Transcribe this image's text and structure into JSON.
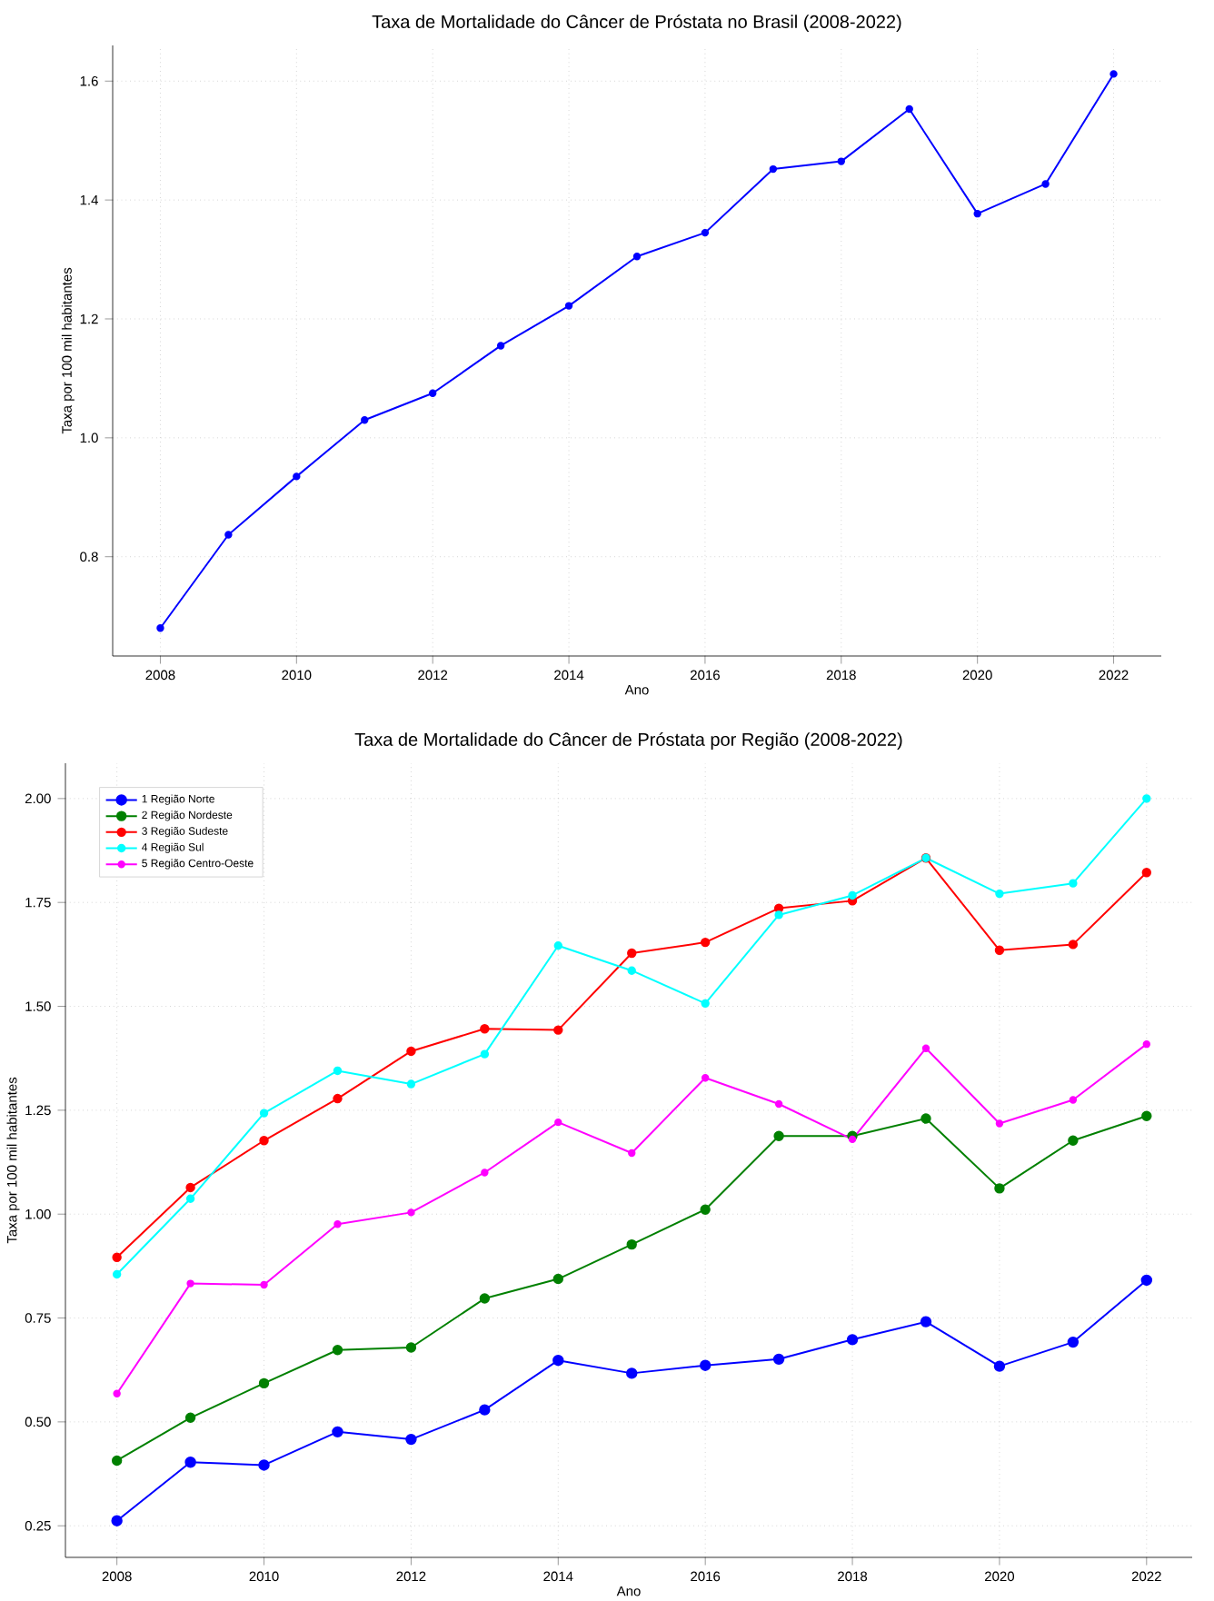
{
  "chart_data": [
    {
      "type": "line",
      "title": "Taxa de Mortalidade do Câncer de Próstata no Brasil (2008-2022)",
      "xlabel": "Ano",
      "ylabel": "Taxa por 100 mil habitantes",
      "x": [
        2008,
        2009,
        2010,
        2011,
        2012,
        2013,
        2014,
        2015,
        2016,
        2017,
        2018,
        2019,
        2020,
        2021,
        2022
      ],
      "values": [
        0.68,
        0.837,
        0.935,
        1.03,
        1.075,
        1.155,
        1.222,
        1.305,
        1.345,
        1.452,
        1.465,
        1.553,
        1.377,
        1.427,
        1.612
      ],
      "color": "#0000ff",
      "marker": "circle",
      "line_style": "solid",
      "grid": true,
      "legend": false,
      "xlim": [
        2007.3,
        2022.7
      ],
      "ylim": [
        0.633,
        1.66
      ],
      "xticks": [
        2008,
        2010,
        2012,
        2014,
        2016,
        2018,
        2020,
        2022
      ],
      "yticks": [
        0.8,
        {
          "value": 1.0,
          "label": "1.0"
        },
        1.2,
        1.4,
        1.6
      ]
    },
    {
      "type": "line",
      "title": "Taxa de Mortalidade do Câncer de Próstata por Região (2008-2022)",
      "xlabel": "Ano",
      "ylabel": "Taxa por 100 mil habitantes",
      "x": [
        2008,
        2009,
        2010,
        2011,
        2012,
        2013,
        2014,
        2015,
        2016,
        2017,
        2018,
        2019,
        2020,
        2021,
        2022
      ],
      "series": [
        {
          "name": "1 Região Norte",
          "color": "#0000ff",
          "values": [
            0.262,
            0.403,
            0.396,
            0.476,
            0.458,
            0.529,
            0.648,
            0.617,
            0.636,
            0.651,
            0.698,
            0.741,
            0.634,
            0.692,
            0.841
          ]
        },
        {
          "name": "2 Região Nordeste",
          "color": "#008000",
          "values": [
            0.407,
            0.51,
            0.593,
            0.673,
            0.679,
            0.797,
            0.844,
            0.927,
            1.011,
            1.188,
            1.188,
            1.23,
            1.062,
            1.177,
            1.236
          ]
        },
        {
          "name": "3 Região Sudeste",
          "color": "#ff0000",
          "values": [
            0.896,
            1.064,
            1.177,
            1.278,
            1.392,
            1.446,
            1.443,
            1.628,
            1.654,
            1.736,
            1.754,
            1.857,
            1.635,
            1.649,
            1.822
          ]
        },
        {
          "name": "4 Região Sul",
          "color": "#00ffff",
          "values": [
            0.855,
            1.037,
            1.243,
            1.345,
            1.313,
            1.385,
            1.646,
            1.586,
            1.507,
            1.72,
            1.767,
            1.857,
            1.771,
            1.796,
            2.0
          ]
        },
        {
          "name": "5 Região Centro-Oeste",
          "color": "#ff00ff",
          "values": [
            0.568,
            0.833,
            0.83,
            0.976,
            1.004,
            1.1,
            1.221,
            1.147,
            1.328,
            1.265,
            1.18,
            1.399,
            1.218,
            1.275,
            1.409
          ]
        }
      ],
      "marker": "circle",
      "line_style": "solid",
      "grid": true,
      "legend": "top left",
      "xlim": [
        2007.3,
        2022.62
      ],
      "ylim": [
        0.174,
        2.085
      ],
      "xticks": [
        2008,
        2010,
        2012,
        2014,
        2016,
        2018,
        2020,
        2022
      ],
      "yticks": [
        0.25,
        {
          "value": 0.5,
          "label": "0.50"
        },
        0.75,
        {
          "value": 1.0,
          "label": "1.00"
        },
        1.25,
        {
          "value": 1.5,
          "label": "1.50"
        },
        1.75,
        {
          "value": 2.0,
          "label": "2.00"
        }
      ]
    }
  ]
}
